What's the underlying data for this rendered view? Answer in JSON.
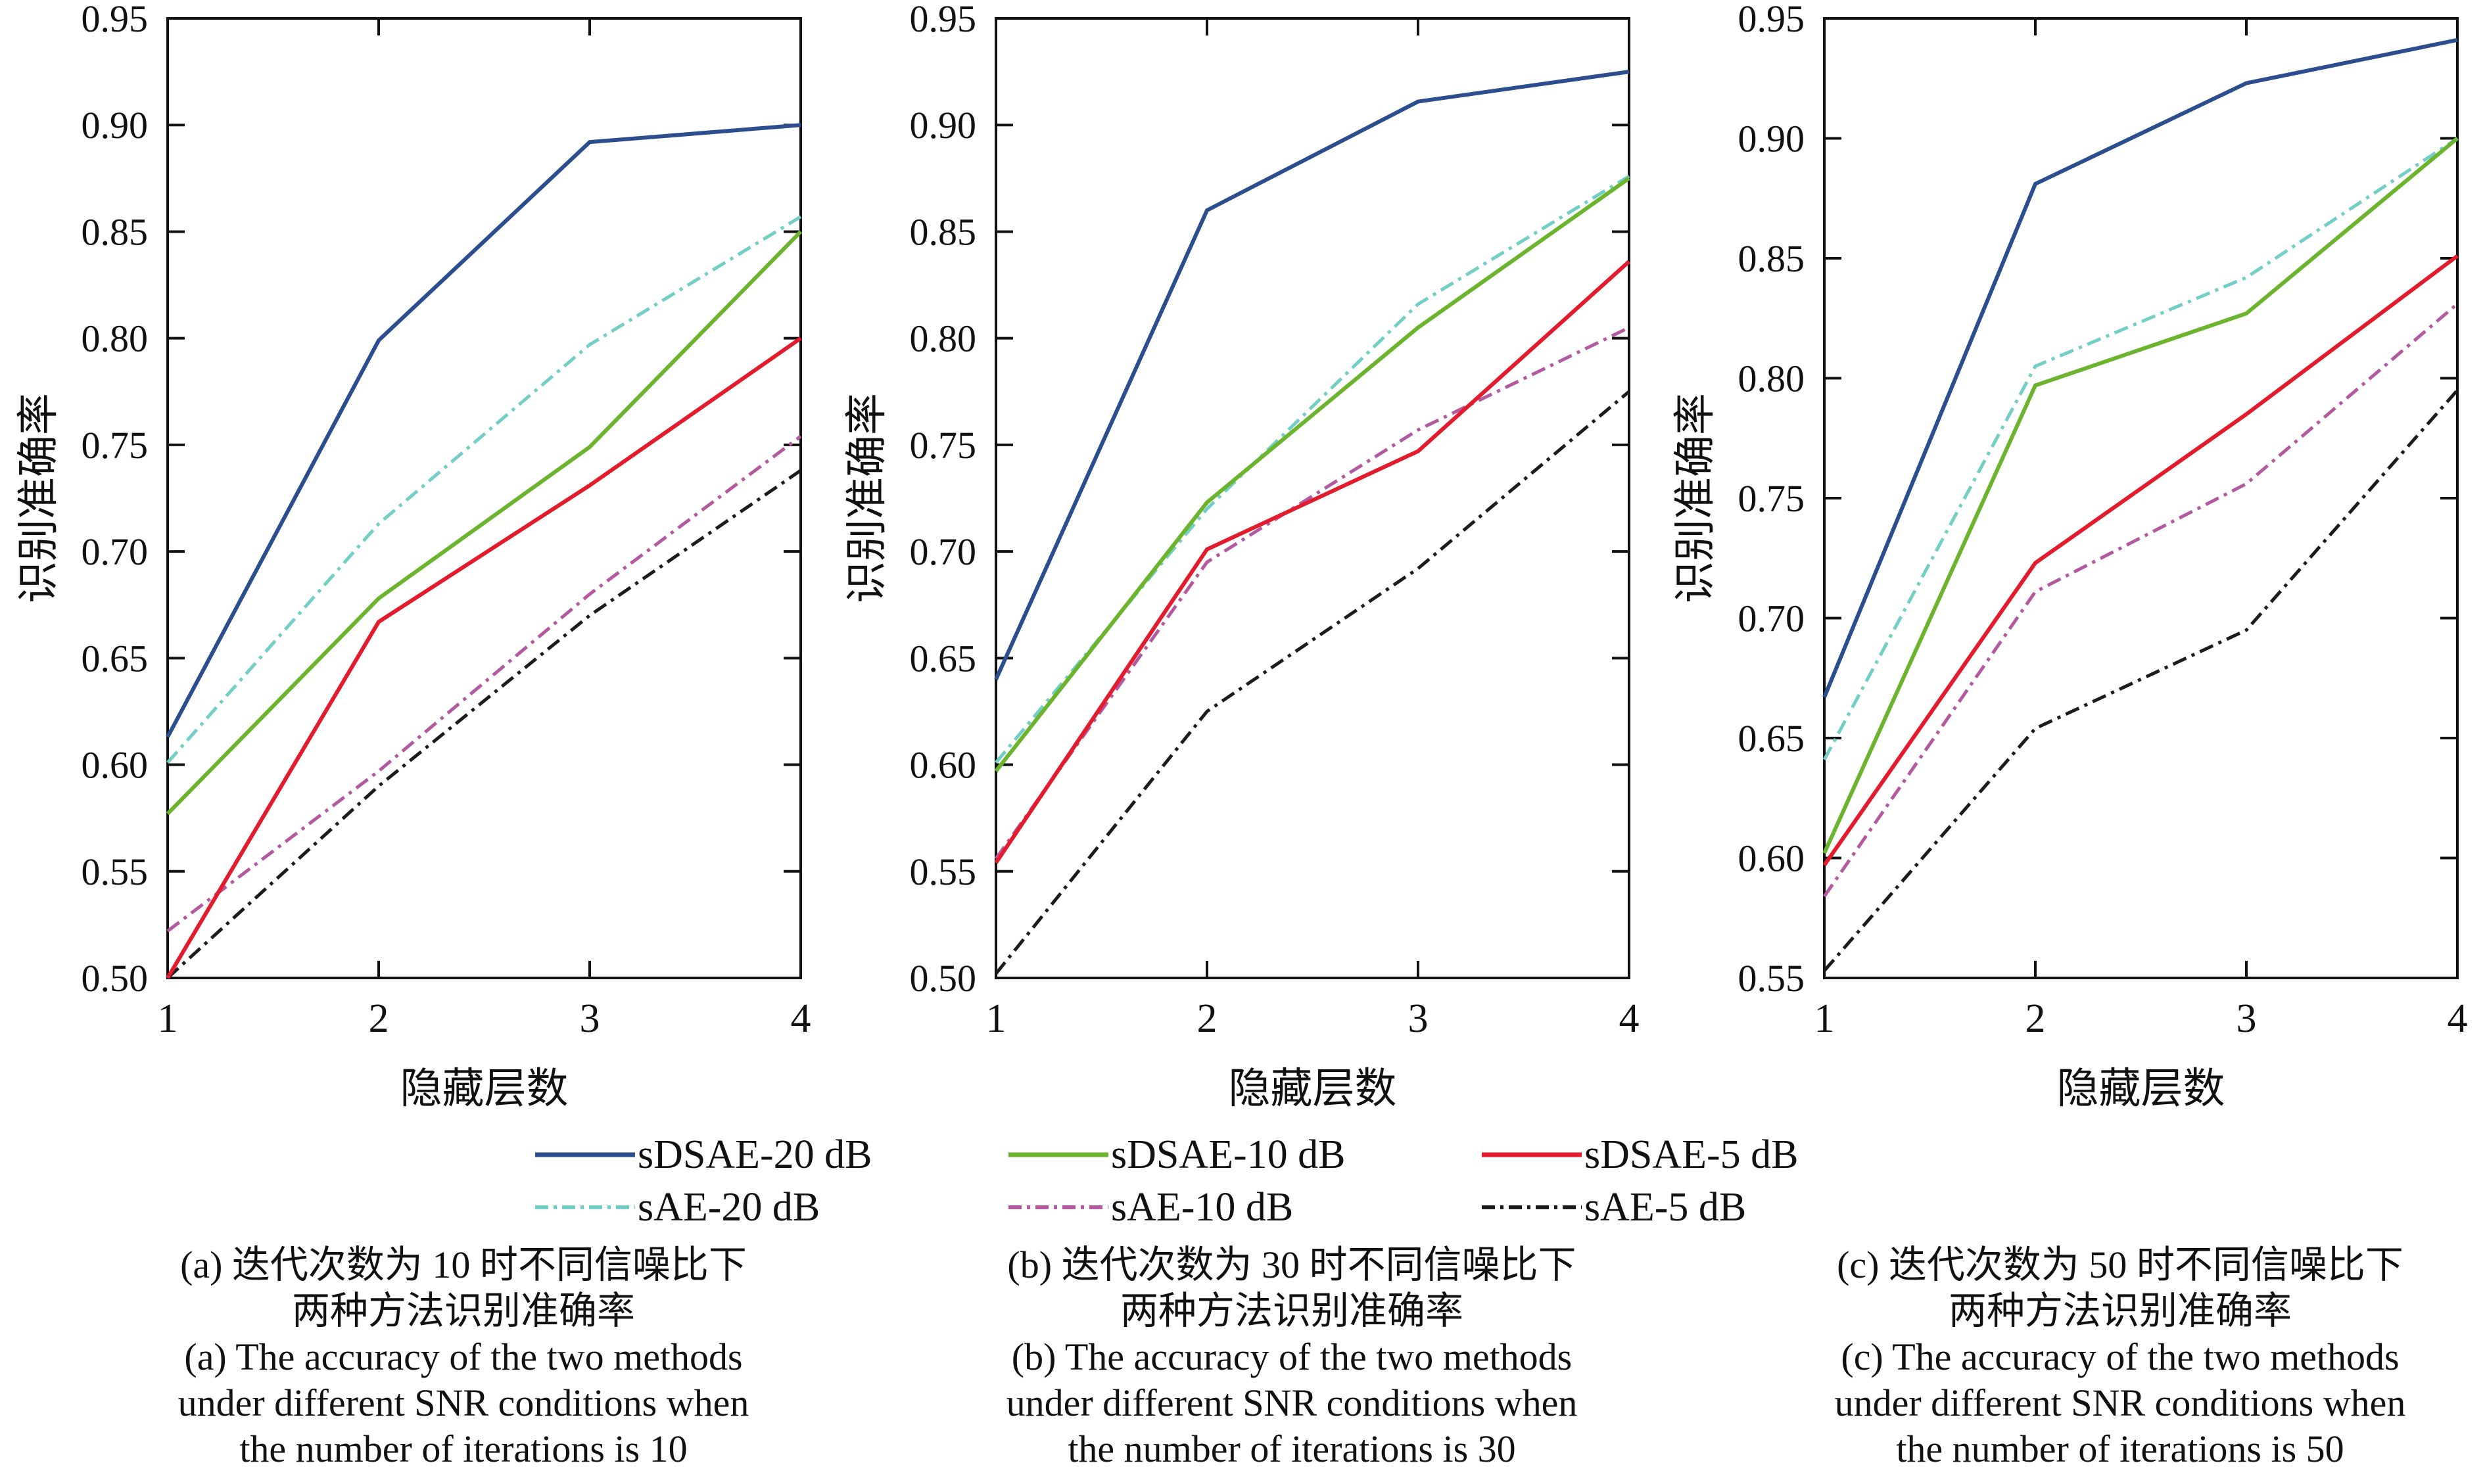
{
  "page": {
    "background": "#ffffff",
    "text_color": "#111111"
  },
  "legend": {
    "position": "bottom-center",
    "items": [
      {
        "label": "sDSAE-20 dB",
        "color": "#2c4d8e",
        "style": "solid"
      },
      {
        "label": "sDSAE-10 dB",
        "color": "#6cb32e",
        "style": "solid"
      },
      {
        "label": "sDSAE-5 dB",
        "color": "#e31c2d",
        "style": "solid"
      },
      {
        "label": "sAE-20 dB",
        "color": "#73cec5",
        "style": "dash-dot"
      },
      {
        "label": "sAE-10 dB",
        "color": "#b3599f",
        "style": "dash-dot"
      },
      {
        "label": "sAE-5 dB",
        "color": "#1c1c1c",
        "style": "dash-dot"
      }
    ]
  },
  "chart_data": [
    {
      "id": "a",
      "type": "line",
      "x": [
        1,
        2,
        3,
        4
      ],
      "xlabel": "隐藏层数",
      "ylabel": "识别准确率",
      "ylim": [
        0.5,
        0.95
      ],
      "ytick_step": 0.05,
      "grid": false,
      "series": [
        {
          "name": "sAE-5 dB",
          "color": "#1c1c1c",
          "style": "dash-dot",
          "values": [
            0.5,
            0.59,
            0.67,
            0.738
          ]
        },
        {
          "name": "sAE-10 dB",
          "color": "#b3599f",
          "style": "dash-dot",
          "values": [
            0.522,
            0.597,
            0.68,
            0.754
          ]
        },
        {
          "name": "sDSAE-5 dB",
          "color": "#e31c2d",
          "style": "solid",
          "values": [
            0.5,
            0.667,
            0.731,
            0.8
          ]
        },
        {
          "name": "sAE-20 dB",
          "color": "#73cec5",
          "style": "dash-dot",
          "values": [
            0.601,
            0.713,
            0.797,
            0.857
          ]
        },
        {
          "name": "sDSAE-10 dB",
          "color": "#6cb32e",
          "style": "solid",
          "values": [
            0.577,
            0.678,
            0.749,
            0.85
          ]
        },
        {
          "name": "sDSAE-20 dB",
          "color": "#2c4d8e",
          "style": "solid",
          "values": [
            0.613,
            0.799,
            0.892,
            0.9
          ]
        }
      ],
      "caption_lines": [
        "(a) 迭代次数为 10 时不同信噪比下",
        "两种方法识别准确率",
        "(a) The accuracy of the two methods",
        "under different SNR conditions when",
        "the number of iterations is 10"
      ]
    },
    {
      "id": "b",
      "type": "line",
      "x": [
        1,
        2,
        3,
        4
      ],
      "xlabel": "隐藏层数",
      "ylabel": "识别准确率",
      "ylim": [
        0.5,
        0.95
      ],
      "ytick_step": 0.05,
      "grid": false,
      "series": [
        {
          "name": "sAE-5 dB",
          "color": "#1c1c1c",
          "style": "dash-dot",
          "values": [
            0.502,
            0.625,
            0.692,
            0.775
          ]
        },
        {
          "name": "sAE-10 dB",
          "color": "#b3599f",
          "style": "dash-dot",
          "values": [
            0.556,
            0.695,
            0.757,
            0.805
          ]
        },
        {
          "name": "sDSAE-5 dB",
          "color": "#e31c2d",
          "style": "solid",
          "values": [
            0.554,
            0.701,
            0.747,
            0.836
          ]
        },
        {
          "name": "sAE-20 dB",
          "color": "#73cec5",
          "style": "dash-dot",
          "values": [
            0.601,
            0.72,
            0.816,
            0.876
          ]
        },
        {
          "name": "sDSAE-10 dB",
          "color": "#6cb32e",
          "style": "solid",
          "values": [
            0.597,
            0.723,
            0.805,
            0.875
          ]
        },
        {
          "name": "sDSAE-20 dB",
          "color": "#2c4d8e",
          "style": "solid",
          "values": [
            0.64,
            0.86,
            0.911,
            0.925
          ]
        }
      ],
      "caption_lines": [
        "(b) 迭代次数为 30 时不同信噪比下",
        "两种方法识别准确率",
        "(b) The accuracy of the two methods",
        "under different SNR conditions when",
        "the number of iterations is 30"
      ]
    },
    {
      "id": "c",
      "type": "line",
      "x": [
        1,
        2,
        3,
        4
      ],
      "xlabel": "隐藏层数",
      "ylabel": "识别准确率",
      "ylim": [
        0.55,
        0.95
      ],
      "ytick_step": 0.05,
      "grid": false,
      "series": [
        {
          "name": "sAE-5 dB",
          "color": "#1c1c1c",
          "style": "dash-dot",
          "values": [
            0.553,
            0.654,
            0.695,
            0.795
          ]
        },
        {
          "name": "sAE-10 dB",
          "color": "#b3599f",
          "style": "dash-dot",
          "values": [
            0.584,
            0.711,
            0.756,
            0.831
          ]
        },
        {
          "name": "sDSAE-5 dB",
          "color": "#e31c2d",
          "style": "solid",
          "values": [
            0.597,
            0.723,
            0.785,
            0.851
          ]
        },
        {
          "name": "sAE-20 dB",
          "color": "#73cec5",
          "style": "dash-dot",
          "values": [
            0.641,
            0.805,
            0.842,
            0.9
          ]
        },
        {
          "name": "sDSAE-10 dB",
          "color": "#6cb32e",
          "style": "solid",
          "values": [
            0.602,
            0.797,
            0.827,
            0.9
          ]
        },
        {
          "name": "sDSAE-20 dB",
          "color": "#2c4d8e",
          "style": "solid",
          "values": [
            0.667,
            0.881,
            0.923,
            0.941
          ]
        }
      ],
      "caption_lines": [
        "(c) 迭代次数为 50 时不同信噪比下",
        "两种方法识别准确率",
        "(c) The accuracy of the two methods",
        "under different SNR conditions when",
        "the number of iterations is 50"
      ]
    }
  ]
}
